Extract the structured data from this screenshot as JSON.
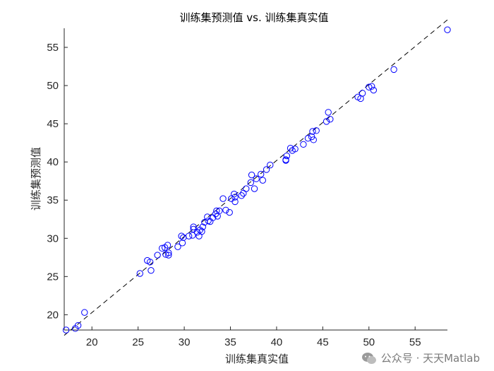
{
  "chart_data": {
    "type": "scatter",
    "title": "训练集预测值 vs. 训练集真实值",
    "xlabel": "训练集真实值",
    "ylabel": "训练集预测值",
    "xlim": [
      17,
      58.5
    ],
    "ylim": [
      18,
      57.5
    ],
    "xticks": [
      20,
      25,
      30,
      35,
      40,
      45,
      50,
      55
    ],
    "yticks": [
      20,
      25,
      30,
      35,
      40,
      45,
      50,
      55
    ],
    "grid": false,
    "reference_line": {
      "style": "dashed",
      "color": "#000000",
      "from": [
        17,
        17.3
      ],
      "to": [
        58.5,
        58.6
      ]
    },
    "marker": {
      "shape": "circle",
      "filled": false,
      "color": "#0000ff"
    },
    "points": [
      [
        17.2,
        18.0
      ],
      [
        18.2,
        18.2
      ],
      [
        18.5,
        18.6
      ],
      [
        19.2,
        20.3
      ],
      [
        25.2,
        25.4
      ],
      [
        26.0,
        27.1
      ],
      [
        26.3,
        26.9
      ],
      [
        26.4,
        25.8
      ],
      [
        27.1,
        27.8
      ],
      [
        27.6,
        28.7
      ],
      [
        27.9,
        28.8
      ],
      [
        28.0,
        27.9
      ],
      [
        28.2,
        29.1
      ],
      [
        28.3,
        28.1
      ],
      [
        28.3,
        27.8
      ],
      [
        29.3,
        28.9
      ],
      [
        29.7,
        30.3
      ],
      [
        29.8,
        29.4
      ],
      [
        29.9,
        30.1
      ],
      [
        30.5,
        30.3
      ],
      [
        30.9,
        30.4
      ],
      [
        31.0,
        31.2
      ],
      [
        31.0,
        31.5
      ],
      [
        31.4,
        30.8
      ],
      [
        31.6,
        30.3
      ],
      [
        31.7,
        31.1
      ],
      [
        31.9,
        30.9
      ],
      [
        32.0,
        31.5
      ],
      [
        32.2,
        32.1
      ],
      [
        32.5,
        32.8
      ],
      [
        32.6,
        32.3
      ],
      [
        32.8,
        32.2
      ],
      [
        33.1,
        32.7
      ],
      [
        33.4,
        33.2
      ],
      [
        33.5,
        33.6
      ],
      [
        33.6,
        32.9
      ],
      [
        33.8,
        33.6
      ],
      [
        34.2,
        35.2
      ],
      [
        34.5,
        33.7
      ],
      [
        34.9,
        33.4
      ],
      [
        35.1,
        35.2
      ],
      [
        35.4,
        35.8
      ],
      [
        35.5,
        34.8
      ],
      [
        35.5,
        35.4
      ],
      [
        36.2,
        35.6
      ],
      [
        36.4,
        35.9
      ],
      [
        36.7,
        36.5
      ],
      [
        37.2,
        37.3
      ],
      [
        37.3,
        38.3
      ],
      [
        37.6,
        36.5
      ],
      [
        37.8,
        37.8
      ],
      [
        38.3,
        38.4
      ],
      [
        38.5,
        37.6
      ],
      [
        38.9,
        39.0
      ],
      [
        39.3,
        39.6
      ],
      [
        41.0,
        40.3
      ],
      [
        41.0,
        40.2
      ],
      [
        41.1,
        40.8
      ],
      [
        41.5,
        41.8
      ],
      [
        41.7,
        41.5
      ],
      [
        42.0,
        41.7
      ],
      [
        42.9,
        42.3
      ],
      [
        43.4,
        43.1
      ],
      [
        43.8,
        43.3
      ],
      [
        43.9,
        44.0
      ],
      [
        44.0,
        42.9
      ],
      [
        44.3,
        44.1
      ],
      [
        45.4,
        45.3
      ],
      [
        45.6,
        46.5
      ],
      [
        45.8,
        45.6
      ],
      [
        48.8,
        48.5
      ],
      [
        49.1,
        48.3
      ],
      [
        49.3,
        49.0
      ],
      [
        50.0,
        49.8
      ],
      [
        50.3,
        49.9
      ],
      [
        50.5,
        49.4
      ],
      [
        52.7,
        52.1
      ],
      [
        58.5,
        57.3
      ]
    ]
  },
  "watermark": {
    "text": "公众号 · 天天Matlab",
    "icon": "wechat-icon"
  }
}
